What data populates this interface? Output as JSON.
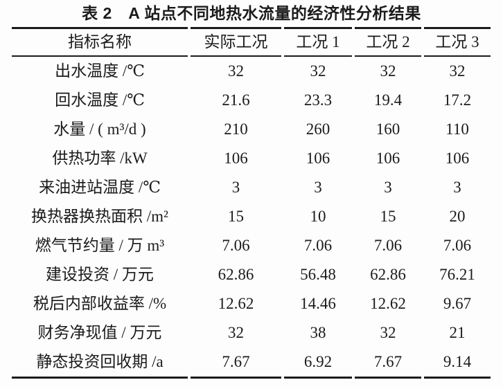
{
  "title": "表 2　A 站点不同地热水流量的经济性分析结果",
  "table": {
    "headers": [
      "指标名称",
      "实际工况",
      "工况 1",
      "工况 2",
      "工况 3"
    ],
    "rows": [
      {
        "label": "出水温度 /℃",
        "values": [
          "32",
          "32",
          "32",
          "32"
        ]
      },
      {
        "label": "回水温度 /℃",
        "values": [
          "21.6",
          "23.3",
          "19.4",
          "17.2"
        ]
      },
      {
        "label": "水量 / ( m³/d )",
        "values": [
          "210",
          "260",
          "160",
          "110"
        ]
      },
      {
        "label": "供热功率 /kW",
        "values": [
          "106",
          "106",
          "106",
          "106"
        ]
      },
      {
        "label": "来油进站温度 /℃",
        "values": [
          "3",
          "3",
          "3",
          "3"
        ]
      },
      {
        "label": "换热器换热面积 /m²",
        "values": [
          "15",
          "10",
          "15",
          "20"
        ]
      },
      {
        "label": "燃气节约量 / 万 m³",
        "values": [
          "7.06",
          "7.06",
          "7.06",
          "7.06"
        ]
      },
      {
        "label": "建设投资 / 万元",
        "values": [
          "62.86",
          "56.48",
          "62.86",
          "76.21"
        ]
      },
      {
        "label": "税后内部收益率 /%",
        "values": [
          "12.62",
          "14.46",
          "12.62",
          "9.67"
        ]
      },
      {
        "label": "财务净现值 / 万元",
        "values": [
          "32",
          "38",
          "32",
          "21"
        ]
      },
      {
        "label": "静态投资回收期 /a",
        "values": [
          "7.67",
          "6.92",
          "7.67",
          "9.14"
        ]
      }
    ]
  },
  "colors": {
    "text": "#1b1b1b",
    "rule": "#1b1b1b",
    "background": "#fdfdfd"
  }
}
